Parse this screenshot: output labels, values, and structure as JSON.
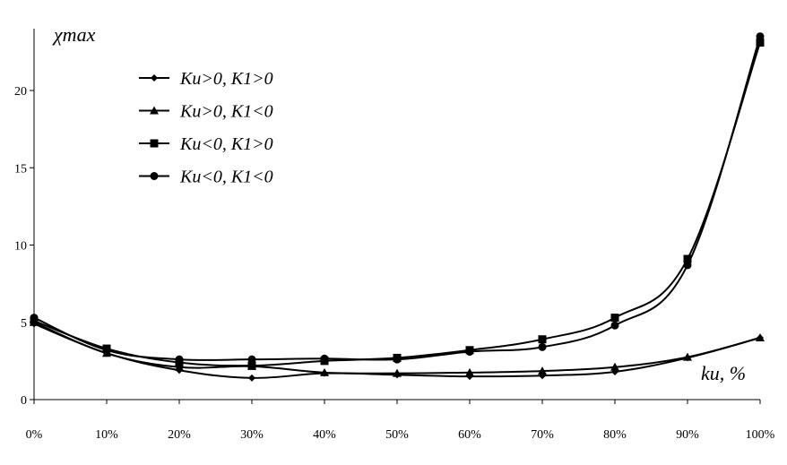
{
  "chart_data": {
    "type": "line",
    "ylabel": "χmax",
    "xlabel": "ku, %",
    "categories": [
      "0%",
      "10%",
      "20%",
      "30%",
      "40%",
      "50%",
      "60%",
      "70%",
      "80%",
      "90%",
      "100%"
    ],
    "ylim": [
      0,
      24
    ],
    "yticks": [
      0,
      5,
      10,
      15,
      20
    ],
    "grid": false,
    "legend_placement": "top-left",
    "series": [
      {
        "name": "Ku>0, K1>0",
        "marker": "diamond",
        "values": [
          4.9,
          3.0,
          1.9,
          1.4,
          1.7,
          1.6,
          1.5,
          1.55,
          1.8,
          2.7,
          4.0
        ]
      },
      {
        "name": "Ku>0, K1<0",
        "marker": "triangle",
        "values": [
          5.0,
          3.0,
          2.1,
          2.15,
          1.75,
          1.7,
          1.75,
          1.85,
          2.1,
          2.75,
          4.0
        ]
      },
      {
        "name": "Ku<0, K1>0",
        "marker": "square",
        "values": [
          5.1,
          3.3,
          2.4,
          2.2,
          2.5,
          2.7,
          3.2,
          3.9,
          5.3,
          9.1,
          23.1
        ]
      },
      {
        "name": "Ku<0, K1<0",
        "marker": "circle",
        "values": [
          5.3,
          3.2,
          2.6,
          2.6,
          2.65,
          2.6,
          3.1,
          3.4,
          4.8,
          8.7,
          23.5
        ]
      }
    ]
  }
}
